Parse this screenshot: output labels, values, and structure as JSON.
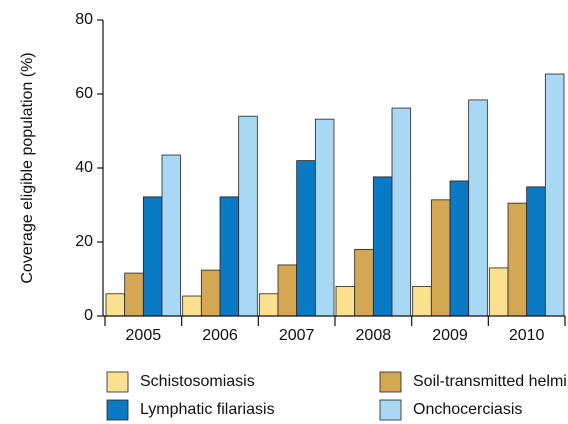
{
  "chart_data": {
    "type": "bar",
    "ylabel": "Coverage eligible population (%)",
    "categories": [
      "2005",
      "2006",
      "2007",
      "2008",
      "2009",
      "2010"
    ],
    "series": [
      {
        "name": "Schistosomiasis",
        "color": "#fbe08f",
        "values": [
          6,
          5.4,
          6,
          8,
          8,
          13
        ]
      },
      {
        "name": "Soil-transmitted helminths",
        "color": "#d4a853",
        "values": [
          11.6,
          12.4,
          13.8,
          18,
          31.4,
          30.5
        ]
      },
      {
        "name": "Lymphatic filariasis",
        "color": "#0a7ac5",
        "values": [
          32.2,
          32.2,
          42,
          37.6,
          36.5,
          34.9
        ]
      },
      {
        "name": "Onchocerciasis",
        "color": "#a9d8f5",
        "values": [
          43.5,
          54,
          53.2,
          56.2,
          58.4,
          65.4
        ]
      }
    ],
    "ylim": [
      0,
      80
    ],
    "yticks": [
      0,
      20,
      40,
      60,
      80
    ]
  }
}
